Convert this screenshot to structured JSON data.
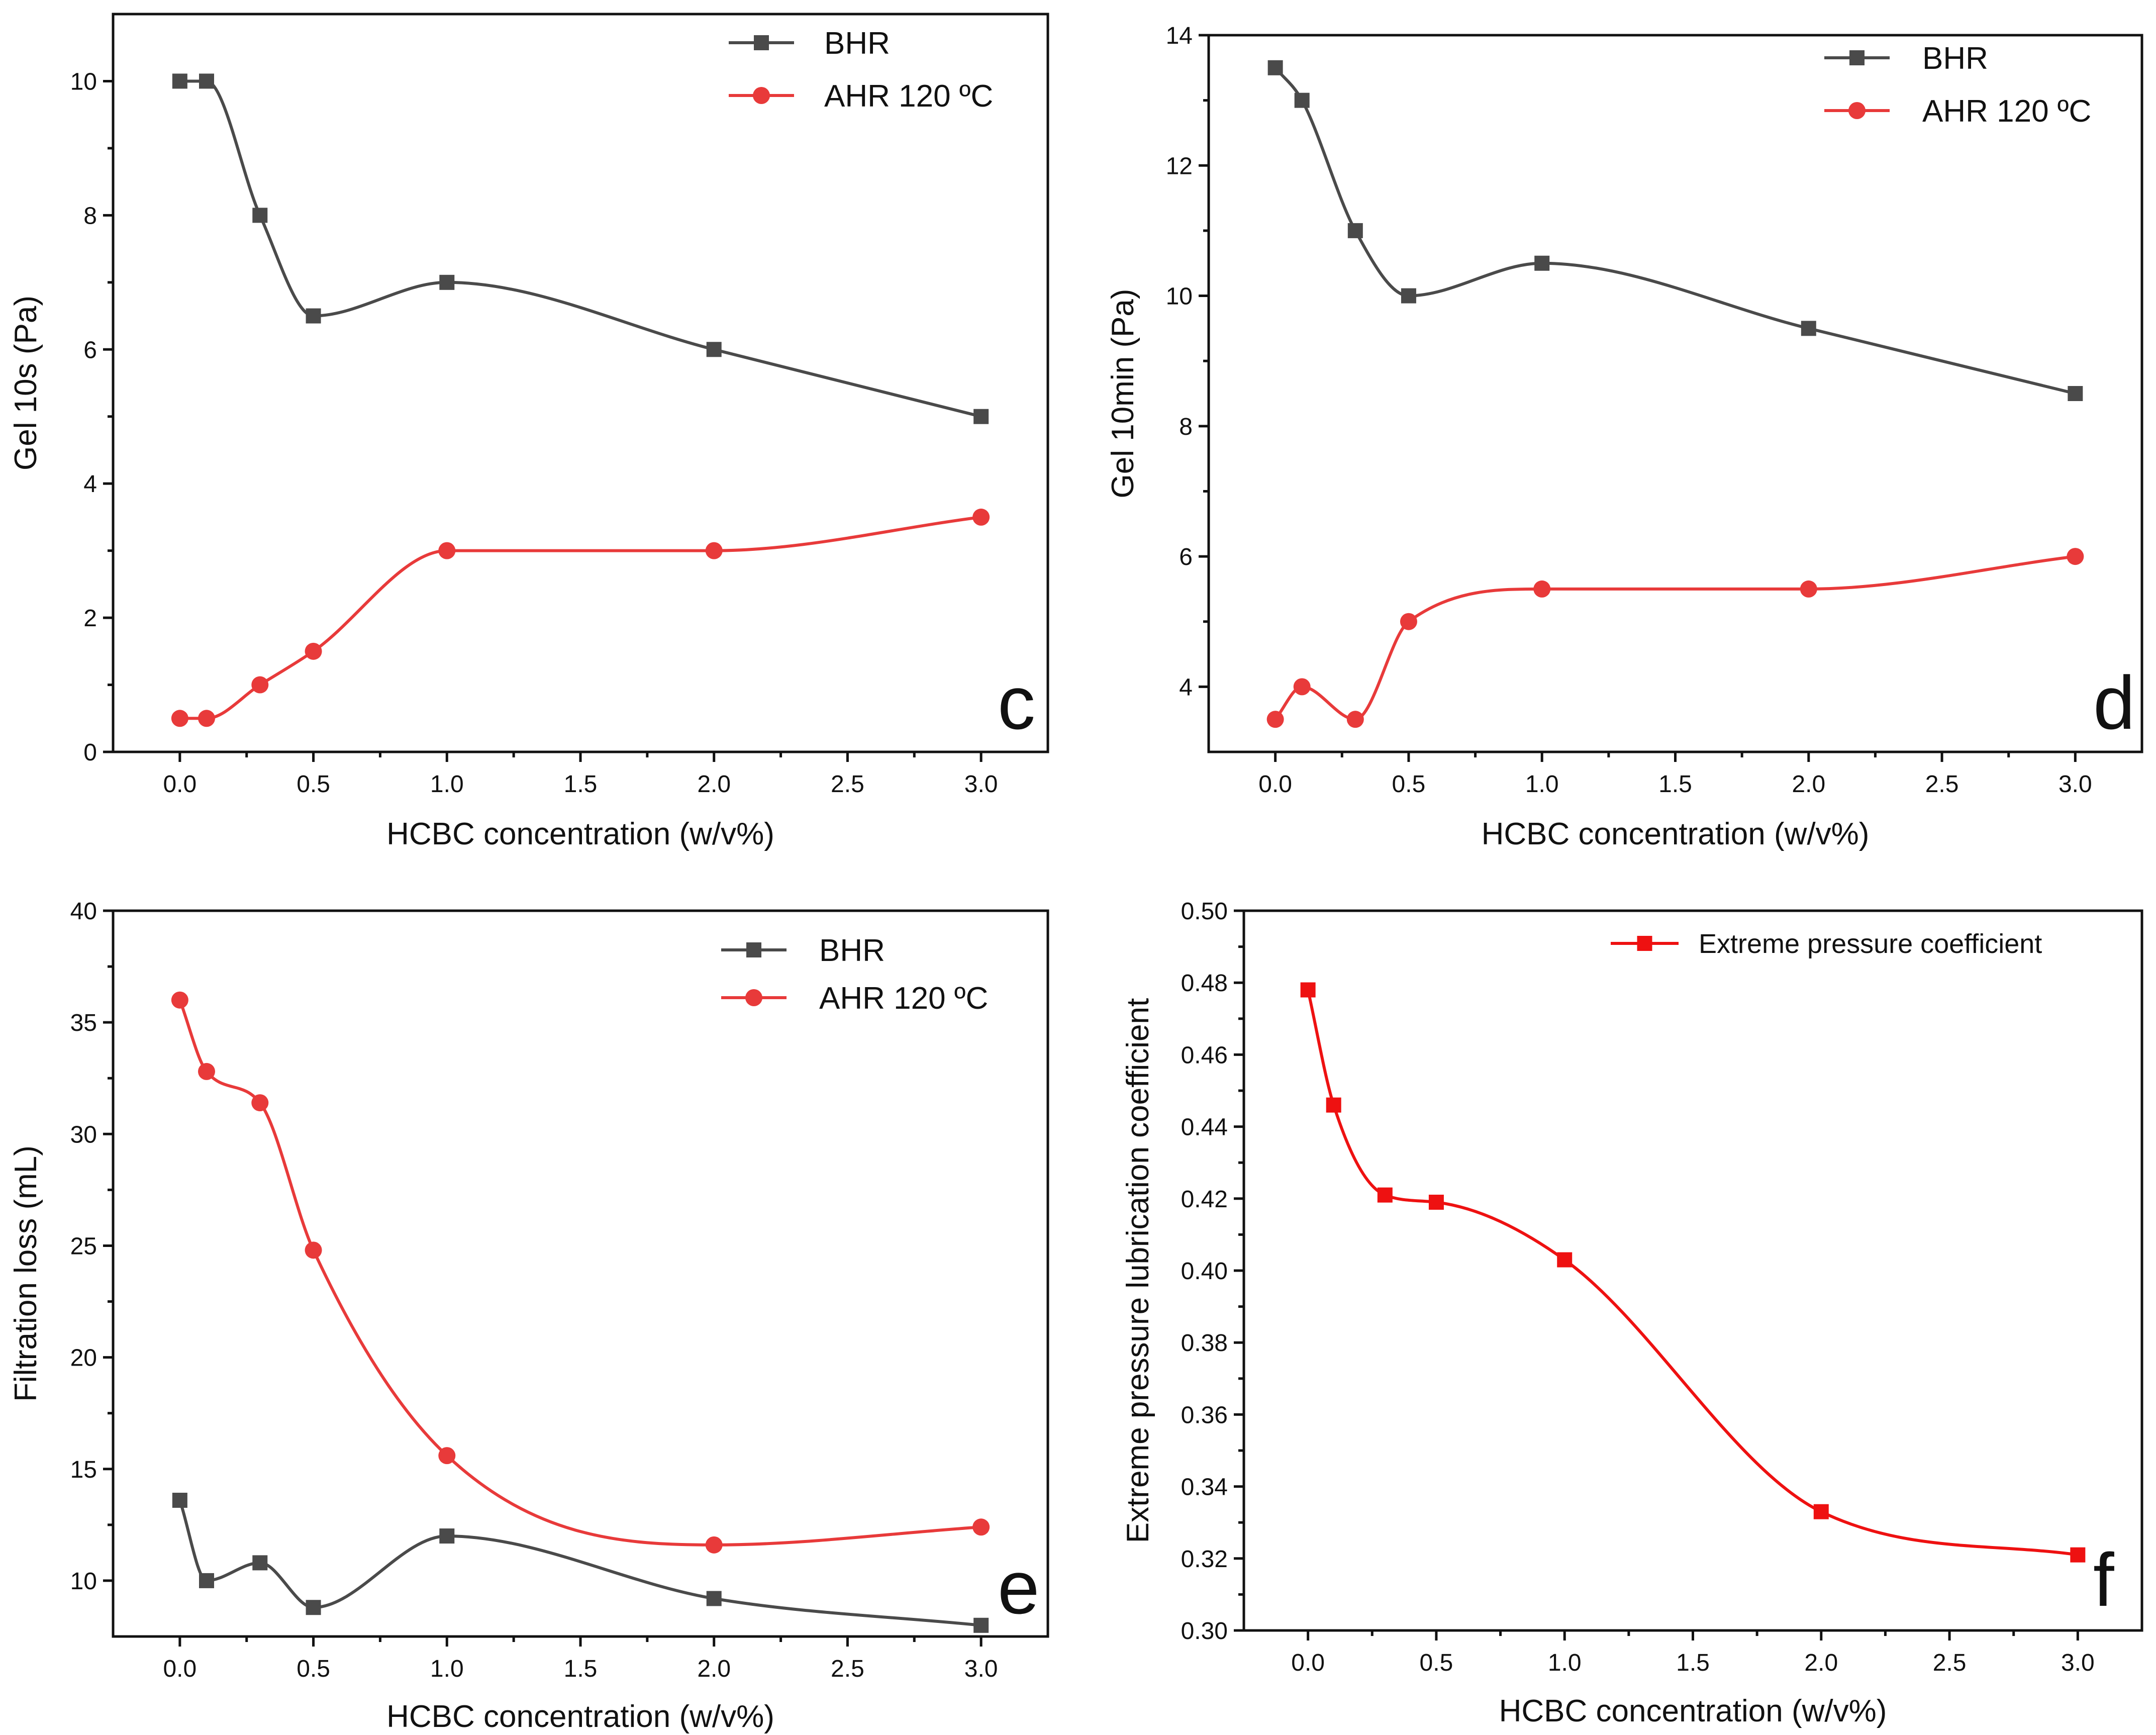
{
  "colors": {
    "BHR": "#4a4a4a",
    "AHR": "#e83a3a",
    "EP": "#ee1111",
    "axis": "#111111"
  },
  "chart_data": [
    {
      "id": "c",
      "type": "line",
      "panel_letter": "c",
      "xlabel": "HCBC concentration (w/v%)",
      "ylabel": "Gel 10s (Pa)",
      "xlim": [
        -0.25,
        3.25
      ],
      "ylim": [
        0,
        11
      ],
      "xticks": [
        0.0,
        0.5,
        1.0,
        1.5,
        2.0,
        2.5,
        3.0
      ],
      "xtick_labels": [
        "0.0",
        "0.5",
        "1.0",
        "1.5",
        "2.0",
        "2.5",
        "3.0"
      ],
      "yticks": [
        0,
        2,
        4,
        6,
        8,
        10
      ],
      "ytick_labels": [
        "0",
        "2",
        "4",
        "6",
        "8",
        "10"
      ],
      "legend_position": "top-right",
      "series": [
        {
          "name": "BHR",
          "color_key": "BHR",
          "marker": "square",
          "x": [
            0,
            0.1,
            0.3,
            0.5,
            1.0,
            2.0,
            3.0
          ],
          "y": [
            10,
            10,
            8,
            6.5,
            7,
            6,
            5
          ]
        },
        {
          "name": "AHR 120 ºC",
          "color_key": "AHR",
          "marker": "circle",
          "x": [
            0,
            0.1,
            0.3,
            0.5,
            1.0,
            2.0,
            3.0
          ],
          "y": [
            0.5,
            0.5,
            1,
            1.5,
            3,
            3,
            3.5
          ]
        }
      ]
    },
    {
      "id": "d",
      "type": "line",
      "panel_letter": "d",
      "xlabel": "HCBC concentration (w/v%)",
      "ylabel": "Gel 10min (Pa)",
      "xlim": [
        -0.25,
        3.25
      ],
      "ylim": [
        3,
        14
      ],
      "xticks": [
        0.0,
        0.5,
        1.0,
        1.5,
        2.0,
        2.5,
        3.0
      ],
      "xtick_labels": [
        "0.0",
        "0.5",
        "1.0",
        "1.5",
        "2.0",
        "2.5",
        "3.0"
      ],
      "yticks": [
        4,
        6,
        8,
        10,
        12,
        14
      ],
      "ytick_labels": [
        "4",
        "6",
        "8",
        "10",
        "12",
        "14"
      ],
      "legend_position": "top-right",
      "series": [
        {
          "name": "BHR",
          "color_key": "BHR",
          "marker": "square",
          "x": [
            0,
            0.1,
            0.3,
            0.5,
            1.0,
            2.0,
            3.0
          ],
          "y": [
            13.5,
            13,
            11,
            10,
            10.5,
            9.5,
            8.5
          ]
        },
        {
          "name": "AHR 120 ºC",
          "color_key": "AHR",
          "marker": "circle",
          "x": [
            0,
            0.1,
            0.3,
            0.5,
            1.0,
            2.0,
            3.0
          ],
          "y": [
            3.5,
            4,
            3.5,
            5,
            5.5,
            5.5,
            6
          ]
        }
      ]
    },
    {
      "id": "e",
      "type": "line",
      "panel_letter": "e",
      "xlabel": "HCBC concentration (w/v%)",
      "ylabel": "Filtration loss (mL)",
      "xlim": [
        -0.25,
        3.25
      ],
      "ylim": [
        7.5,
        40
      ],
      "xticks": [
        0.0,
        0.5,
        1.0,
        1.5,
        2.0,
        2.5,
        3.0
      ],
      "xtick_labels": [
        "0.0",
        "0.5",
        "1.0",
        "1.5",
        "2.0",
        "2.5",
        "3.0"
      ],
      "yticks": [
        10,
        15,
        20,
        25,
        30,
        35,
        40
      ],
      "ytick_labels": [
        "10",
        "15",
        "20",
        "25",
        "30",
        "35",
        "40"
      ],
      "legend_position": "top-right",
      "series": [
        {
          "name": "BHR",
          "color_key": "BHR",
          "marker": "square",
          "x": [
            0,
            0.1,
            0.3,
            0.5,
            1.0,
            2.0,
            3.0
          ],
          "y": [
            13.6,
            10.0,
            10.8,
            8.8,
            12.0,
            9.2,
            8.0
          ]
        },
        {
          "name": "AHR 120 ºC",
          "color_key": "AHR",
          "marker": "circle",
          "x": [
            0,
            0.1,
            0.3,
            0.5,
            1.0,
            2.0,
            3.0
          ],
          "y": [
            36.0,
            32.8,
            31.4,
            24.8,
            15.6,
            11.6,
            12.4
          ]
        }
      ]
    },
    {
      "id": "f",
      "type": "line",
      "panel_letter": "f",
      "xlabel": "HCBC concentration (w/v%)",
      "ylabel": "Extreme pressure lubrication coefficient",
      "xlim": [
        -0.25,
        3.25
      ],
      "ylim": [
        0.3,
        0.5
      ],
      "xticks": [
        0.0,
        0.5,
        1.0,
        1.5,
        2.0,
        2.5,
        3.0
      ],
      "xtick_labels": [
        "0.0",
        "0.5",
        "1.0",
        "1.5",
        "2.0",
        "2.5",
        "3.0"
      ],
      "yticks": [
        0.3,
        0.32,
        0.34,
        0.36,
        0.38,
        0.4,
        0.42,
        0.44,
        0.46,
        0.48,
        0.5
      ],
      "ytick_labels": [
        "0.30",
        "0.32",
        "0.34",
        "0.36",
        "0.38",
        "0.40",
        "0.42",
        "0.44",
        "0.46",
        "0.48",
        "0.50"
      ],
      "legend_position": "top-right",
      "series": [
        {
          "name": "Extreme pressure coefficient",
          "color_key": "EP",
          "marker": "square",
          "x": [
            0,
            0.1,
            0.3,
            0.5,
            1.0,
            2.0,
            3.0
          ],
          "y": [
            0.478,
            0.446,
            0.421,
            0.419,
            0.403,
            0.333,
            0.321
          ]
        }
      ]
    }
  ]
}
